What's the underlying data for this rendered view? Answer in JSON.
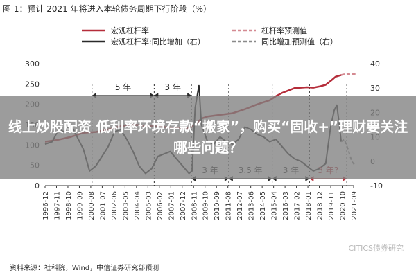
{
  "figure": {
    "title": "图 1：预计 2021 年将进入本轮债务周期下行阶段（%）",
    "source": "资料来源：社科院，Wind，中信证券研究部预测",
    "watermark": "CITICS债券研究"
  },
  "overlay": {
    "headline": "线上炒股配资 低利率环境存款“搬家”，购买“固收+”理财要关注哪些问题？"
  },
  "chart_data": {
    "type": "line",
    "legend": [
      {
        "name": "宏观杠杆率",
        "color": "#b52d3a",
        "dash": "solid"
      },
      {
        "name": "杠杆率预测值",
        "color": "#d48a92",
        "dash": "dashed"
      },
      {
        "name": "宏观杠杆率:同比增加（右）",
        "color": "#2a2a2a",
        "dash": "solid"
      },
      {
        "name": "同比增加预测值（右）",
        "color": "#8a8a8a",
        "dash": "dashed"
      }
    ],
    "legend_placement": "top",
    "grid": false,
    "left_axis": {
      "min": 0,
      "max": 300,
      "ticks": [
        "0",
        "50",
        "100",
        "150",
        "200",
        "250",
        "300"
      ]
    },
    "right_axis": {
      "min": -10,
      "max": 40,
      "ticks": [
        "-10",
        "0",
        "10",
        "20",
        "30",
        "40"
      ]
    },
    "x_ticks": [
      "1996-12",
      "1997-11",
      "1998-10",
      "1999-09",
      "2000-08",
      "2001-07",
      "2002-06",
      "2003-05",
      "2004-04",
      "2005-03",
      "2006-02",
      "2007-01",
      "2007-12",
      "2008-11",
      "2009-10",
      "2010-09",
      "2011-08",
      "2012-07",
      "2013-06",
      "2014-05",
      "2015-04",
      "2016-03",
      "2017-02",
      "2018-01",
      "2018-12",
      "2019-11",
      "2020-10",
      "2021-09"
    ],
    "series": [
      {
        "name": "宏观杠杆率",
        "axis": "left",
        "x": [
          1996.92,
          1998.0,
          1999.0,
          2000.0,
          2001.0,
          2002.0,
          2003.0,
          2004.0,
          2005.0,
          2006.0,
          2007.0,
          2008.0,
          2008.5,
          2009.0,
          2009.5,
          2010.0,
          2011.0,
          2012.0,
          2013.0,
          2014.0,
          2015.0,
          2015.5,
          2016.0,
          2017.0,
          2018.0,
          2018.5,
          2019.0,
          2019.5,
          2020.0,
          2020.3,
          2020.75
        ],
        "y": [
          108,
          113,
          120,
          130,
          132,
          138,
          146,
          150,
          147,
          145,
          143,
          141,
          141,
          150,
          165,
          170,
          174,
          178,
          188,
          200,
          210,
          220,
          228,
          240,
          242,
          241,
          244,
          248,
          260,
          268,
          272
        ]
      },
      {
        "name": "杠杆率预测值",
        "axis": "left",
        "x": [
          2020.75,
          2021.0,
          2021.5,
          2021.9
        ],
        "y": [
          272,
          274,
          275,
          275
        ]
      },
      {
        "name": "宏观杠杆率:同比增加（右）",
        "axis": "right",
        "x": [
          1996.92,
          1997.5,
          1998.0,
          1998.5,
          1999.0,
          1999.5,
          2000.0,
          2000.5,
          2001.0,
          2001.5,
          2002.0,
          2002.5,
          2003.0,
          2003.5,
          2004.0,
          2004.5,
          2005.0,
          2005.5,
          2006.0,
          2006.5,
          2007.0,
          2007.5,
          2008.0,
          2008.5,
          2008.75,
          2009.0,
          2009.3,
          2009.5,
          2010.0,
          2010.5,
          2011.0,
          2011.5,
          2012.0,
          2012.5,
          2013.0,
          2013.5,
          2014.0,
          2014.5,
          2015.0,
          2015.5,
          2016.0,
          2016.5,
          2017.0,
          2017.5,
          2018.0,
          2018.5,
          2019.0,
          2019.5,
          2019.9,
          2020.2,
          2020.4,
          2020.6,
          2020.75
        ],
        "y": [
          7,
          8,
          13,
          12,
          15,
          10,
          5,
          -4,
          -2,
          2,
          6,
          12,
          13,
          9,
          4,
          -2,
          -5,
          -3,
          2,
          3,
          4,
          1,
          -2,
          -5,
          -4,
          22,
          31,
          15,
          8,
          7,
          10,
          8,
          7,
          9,
          14,
          13,
          11,
          10,
          8,
          9,
          6,
          3,
          1,
          0,
          -2,
          -4,
          -3,
          -1,
          14,
          21,
          23,
          15,
          8
        ]
      },
      {
        "name": "同比增加预测值（右）",
        "axis": "right",
        "x": [
          2020.75,
          2021.0,
          2021.3,
          2021.6,
          2021.9
        ],
        "y": [
          8,
          9,
          5,
          0,
          -2
        ]
      }
    ],
    "annotations": [
      {
        "text": "5 年",
        "x_from": 2000.7,
        "x_to": 2005.7,
        "row": "upper"
      },
      {
        "text": "3 年",
        "x_from": 2005.7,
        "x_to": 2008.7,
        "row": "upper"
      },
      {
        "text": "3 年",
        "x_from": 2008.7,
        "x_to": 2011.7,
        "row": "lower"
      },
      {
        "text": "3.5 年",
        "x_from": 2011.7,
        "x_to": 2015.2,
        "row": "lower"
      },
      {
        "text": "3 年",
        "x_from": 2015.2,
        "x_to": 2018.2,
        "row": "lower"
      },
      {
        "text": "3 年?",
        "x_from": 2018.2,
        "x_to": 2021.2,
        "row": "lower",
        "color": "#b52d3a"
      }
    ],
    "cycle_markers": [
      2000.7,
      2005.7,
      2008.7,
      2011.7,
      2015.2,
      2018.2,
      2021.2
    ]
  }
}
